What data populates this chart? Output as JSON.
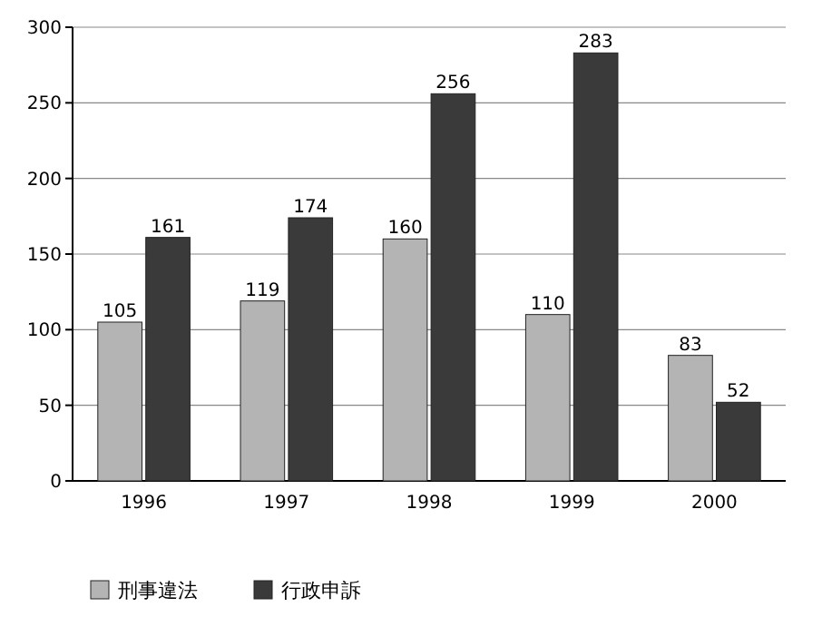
{
  "chart_data": {
    "type": "bar",
    "categories": [
      "1996",
      "1997",
      "1998",
      "1999",
      "2000"
    ],
    "series": [
      {
        "name": "刑事違法",
        "color": "#b4b4b4",
        "values": [
          105,
          119,
          160,
          110,
          83
        ]
      },
      {
        "name": "行政申訴",
        "color": "#3a3a3a",
        "values": [
          161,
          174,
          256,
          283,
          52
        ]
      }
    ],
    "ylim": [
      0,
      300
    ],
    "yticks": [
      0,
      50,
      100,
      150,
      200,
      250,
      300
    ],
    "grid": "y",
    "data_labels": true,
    "legend": "bottom left"
  }
}
